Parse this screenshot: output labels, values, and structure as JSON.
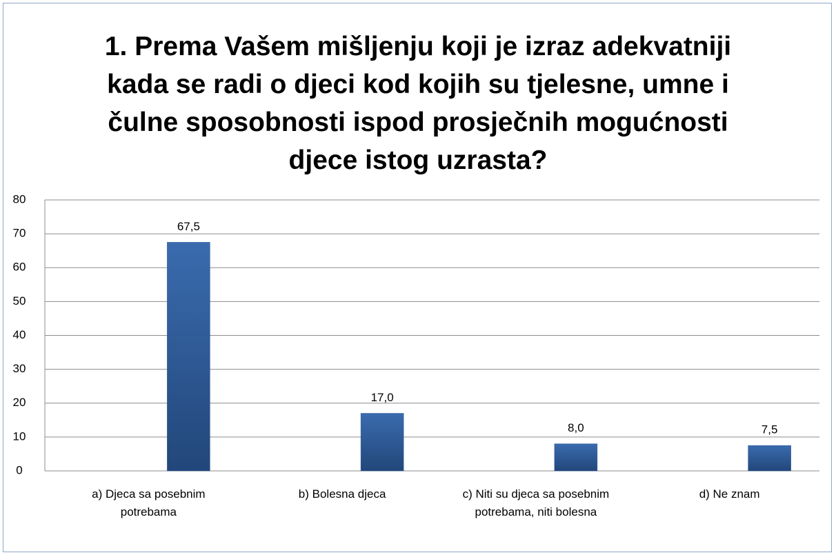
{
  "chart_data": {
    "type": "bar",
    "title": "1. Prema Vašem mišljenju koji je izraz adekvatniji kada se radi o djeci kod kojih su tjelesne, umne i čulne sposobnosti ispod prosječnih mogućnosti djece istog uzrasta?",
    "categories": [
      "a) Djeca sa posebnim potrebama",
      "b) Bolesna djeca",
      "c) Niti su djeca sa posebnim potrebama, niti bolesna",
      "d) Ne znam"
    ],
    "values": [
      67.5,
      17.0,
      8.0,
      7.5
    ],
    "value_labels": [
      "67,5",
      "17,0",
      "8,0",
      "7,5"
    ],
    "color": "#2d5a96",
    "ylim": [
      0,
      80
    ],
    "yticks": [
      0,
      10,
      20,
      30,
      40,
      50,
      60,
      70,
      80
    ],
    "grid": true
  }
}
